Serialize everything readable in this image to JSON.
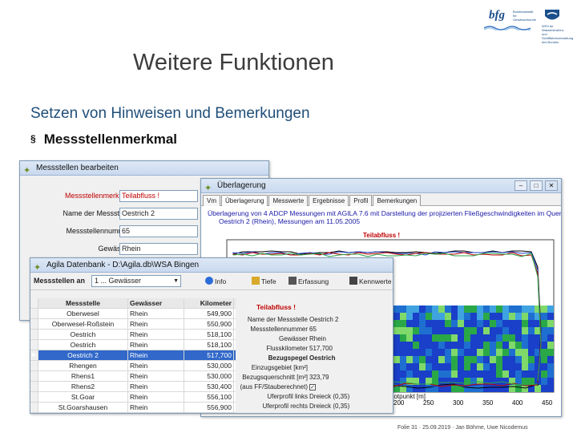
{
  "slide": {
    "title": "Weitere Funktionen",
    "subtitle": "Setzen von Hinweisen und Bemerkungen",
    "bullet_symbol": "§",
    "bullet": "Messstellenmerkmal",
    "footer": "Folie 31 · 25.09.2019 · Jan Böhme, Uwe Nicodemus"
  },
  "logos": {
    "bfg": "bfg",
    "bfg_sub": "Bundesanstalt für Gewässerkunde",
    "wsv": "WSV.de",
    "wsv_sub": "Wasserstraßen- und Schifffahrtsverwaltung des Bundes"
  },
  "win1": {
    "title": "Messstellen bearbeiten",
    "fields": [
      {
        "label": "Messstellenmerkmal",
        "value": "Teilabfluss !",
        "highlight": true
      },
      {
        "label": "Name der Messstelle",
        "value": "Oestrich 2",
        "highlight": false
      },
      {
        "label": "Messstellennummer",
        "value": "65",
        "highlight": false
      },
      {
        "label": "Gewässer",
        "value": "Rhein",
        "highlight": false
      }
    ]
  },
  "win2": {
    "title": "Überlagerung",
    "tabs": [
      "Vm",
      "Überlagerung",
      "Messwerte",
      "Ergebnisse",
      "Profil",
      "Bemerkungen"
    ],
    "caption_line1": "Überlagerung von 4 ADCP Messungen mit AGILA 7.6 mit Darstellung der projizierten Fließgeschwindigkeiten im Querschnitt",
    "caption_line2": "Oestrich 2 (Rhein), Messungen am 11.05.2005",
    "marker": "Teilabfluss !",
    "x_axis_label": "Lotpunkt [m]",
    "x_ticks": [
      "200",
      "250",
      "300",
      "350",
      "400",
      "450"
    ]
  },
  "win3": {
    "title": "Agila Datenbank - D:\\Agila.db\\WSA Bingen",
    "toolbar_label": "Messstellen an",
    "toolbar_select": "1 ... Gewässer",
    "toolbar_buttons": [
      "Info",
      "Tiefe",
      "Erfassung",
      "Kennwerte"
    ],
    "columns": [
      "Messstelle",
      "Gewässer",
      "Kilometer"
    ],
    "rows": [
      {
        "name": "Oberwesel",
        "river": "Rhein",
        "km": "549,900"
      },
      {
        "name": "Oberwesel-Roßstein",
        "river": "Rhein",
        "km": "550,900"
      },
      {
        "name": "Oestrich",
        "river": "Rhein",
        "km": "518,100"
      },
      {
        "name": "Oestrich",
        "river": "Rhein",
        "km": "518,100"
      },
      {
        "name": "Oestrich 2",
        "river": "Rhein",
        "km": "517,700"
      },
      {
        "name": "Rhengen",
        "river": "Rhein",
        "km": "530,000"
      },
      {
        "name": "Rhens1",
        "river": "Rhein",
        "km": "530,000"
      },
      {
        "name": "Rhens2",
        "river": "Rhein",
        "km": "530,400"
      },
      {
        "name": "St.Goar",
        "river": "Rhein",
        "km": "556,100"
      },
      {
        "name": "St.Goarshausen",
        "river": "Rhein",
        "km": "556,900"
      }
    ],
    "selected_index": 4,
    "detail": {
      "marker": "Teilabfluss !",
      "rows": [
        {
          "label": "Name der Messstelle",
          "value": "Oestrich 2",
          "bold": false
        },
        {
          "label": "Messstellennummer",
          "value": "65",
          "bold": false
        },
        {
          "label": "Gewässer",
          "value": "Rhein",
          "bold": false
        },
        {
          "label": "Flusskilometer",
          "value": "517,700",
          "bold": false
        },
        {
          "label": "Bezugspegel",
          "value": "Oestrich",
          "bold": true
        },
        {
          "label": "Einzugsgebiet [km²]",
          "value": "",
          "bold": false
        },
        {
          "label": "Bezugsquerschnitt [m²]",
          "value": "323,79",
          "bold": false
        },
        {
          "label": "(aus FF/Stauberechnet)",
          "value": "✓",
          "bold": false
        },
        {
          "label": "Uferprofil links",
          "value": "Dreieck (0,35)",
          "bold": false
        },
        {
          "label": "Uferprofil rechts",
          "value": "Dreieck (0,35)",
          "bold": false
        }
      ]
    }
  },
  "colors": {
    "title_text": "#3c3c3c",
    "subtitle_text": "#1f4e79",
    "highlight_red": "#c00000",
    "selection_blue": "#3168c9",
    "heatmap_blue": "#1a3fc8",
    "heatmap_green": "#2aa848"
  },
  "icons": [
    "wrench-app-icon",
    "info-icon",
    "depth-icon",
    "capture-icon",
    "parameters-icon",
    "minimize-icon",
    "maximize-icon",
    "close-icon",
    "row-pointer-icon"
  ]
}
